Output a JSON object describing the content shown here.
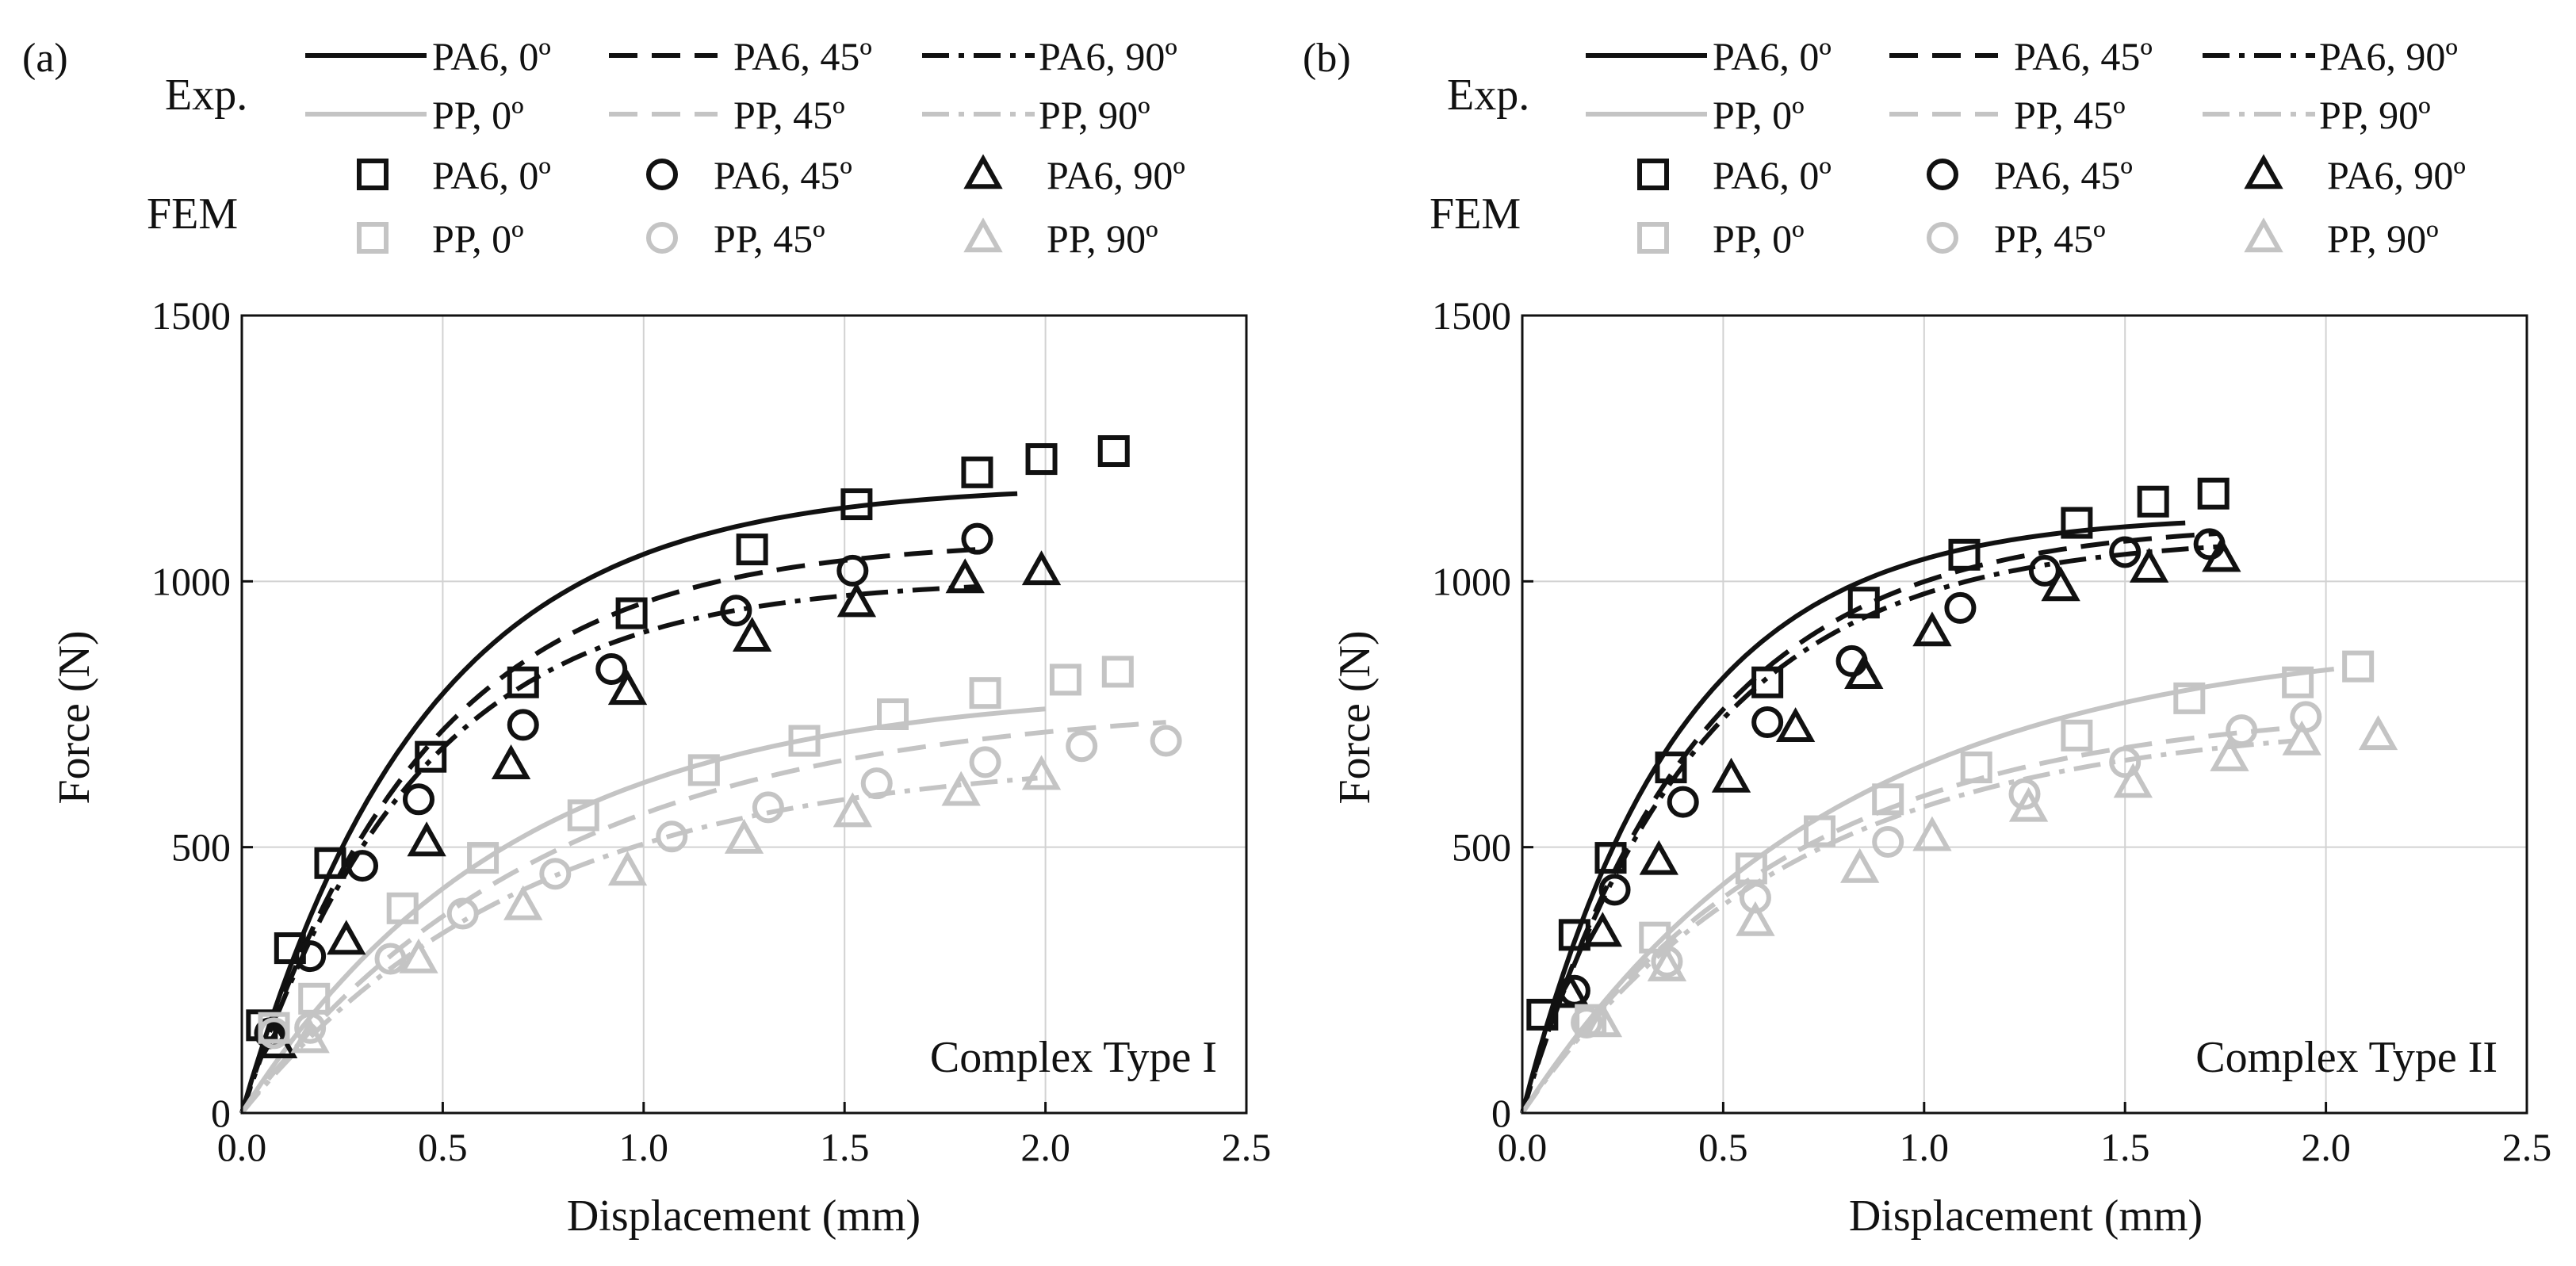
{
  "colors": {
    "pa6": "#111111",
    "pp": "#c4c4c4",
    "grid": "#d2d2d2",
    "axis": "#111111"
  },
  "legend": {
    "exp_label": "Exp.",
    "fem_label": "FEM",
    "items": [
      "PA6, 0º",
      "PA6, 45º",
      "PA6, 90º",
      "PP, 0º",
      "PP, 45º",
      "PP, 90º"
    ]
  },
  "chart_data": [
    {
      "type": "line",
      "panel_label": "(a)",
      "annotation": "Complex Type I",
      "xlabel": "Displacement (mm)",
      "ylabel": "Force (N)",
      "xlim": [
        0,
        2.5
      ],
      "ylim": [
        0,
        1500
      ],
      "xticks": [
        "0.0",
        "0.5",
        "1.0",
        "1.5",
        "2.0",
        "2.5"
      ],
      "yticks": [
        "0",
        "500",
        "1000",
        "1500"
      ],
      "grid": true,
      "exp_series": [
        {
          "name": "PA6, 0º",
          "material": "PA6",
          "style": "solid",
          "x_max": 1.93,
          "y_max": 1165,
          "k": 2.2
        },
        {
          "name": "PA6, 45º",
          "material": "PA6",
          "style": "dash",
          "x_max": 1.83,
          "y_max": 1060,
          "k": 2.2
        },
        {
          "name": "PA6, 90º",
          "material": "PA6",
          "style": "dashdot",
          "x_max": 1.83,
          "y_max": 990,
          "k": 2.3
        },
        {
          "name": "PP, 0º",
          "material": "PP",
          "style": "solid",
          "x_max": 2.0,
          "y_max": 760,
          "k": 1.5
        },
        {
          "name": "PP, 45º",
          "material": "PP",
          "style": "dash",
          "x_max": 2.3,
          "y_max": 735,
          "k": 1.3
        },
        {
          "name": "PP, 90º",
          "material": "PP",
          "style": "dashdot",
          "x_max": 1.98,
          "y_max": 630,
          "k": 1.4
        }
      ],
      "fem_series": [
        {
          "name": "PA6, 0º",
          "material": "PA6",
          "marker": "square",
          "x": [
            0.05,
            0.12,
            0.22,
            0.47,
            0.7,
            0.97,
            1.27,
            1.53,
            1.83,
            1.99,
            2.17
          ],
          "y": [
            165,
            310,
            470,
            670,
            810,
            940,
            1060,
            1145,
            1205,
            1230,
            1245
          ]
        },
        {
          "name": "PA6, 45º",
          "material": "PA6",
          "marker": "circle",
          "x": [
            0.07,
            0.17,
            0.3,
            0.44,
            0.7,
            0.92,
            1.23,
            1.52,
            1.83
          ],
          "y": [
            150,
            295,
            465,
            590,
            730,
            835,
            945,
            1020,
            1080
          ]
        },
        {
          "name": "PA6, 90º",
          "material": "PA6",
          "marker": "triangle",
          "x": [
            0.09,
            0.26,
            0.46,
            0.67,
            0.96,
            1.27,
            1.53,
            1.8,
            1.99
          ],
          "y": [
            130,
            325,
            510,
            655,
            795,
            895,
            960,
            1005,
            1020
          ]
        },
        {
          "name": "PP, 0º",
          "material": "PP",
          "marker": "square",
          "x": [
            0.08,
            0.18,
            0.4,
            0.6,
            0.85,
            1.15,
            1.4,
            1.62,
            1.85,
            2.05,
            2.18
          ],
          "y": [
            160,
            215,
            385,
            480,
            560,
            645,
            700,
            750,
            790,
            815,
            830
          ]
        },
        {
          "name": "PP, 45º",
          "material": "PP",
          "marker": "circle",
          "x": [
            0.08,
            0.17,
            0.37,
            0.55,
            0.78,
            1.07,
            1.31,
            1.58,
            1.85,
            2.09,
            2.3
          ],
          "y": [
            150,
            160,
            290,
            375,
            450,
            520,
            575,
            620,
            660,
            690,
            700
          ]
        },
        {
          "name": "PP, 90º",
          "material": "PP",
          "marker": "triangle",
          "x": [
            0.17,
            0.44,
            0.7,
            0.96,
            1.25,
            1.52,
            1.79,
            1.99
          ],
          "y": [
            140,
            290,
            390,
            455,
            515,
            565,
            605,
            635
          ]
        }
      ]
    },
    {
      "type": "line",
      "panel_label": "(b)",
      "annotation": "Complex Type II",
      "xlabel": "Displacement (mm)",
      "ylabel": "Force (N)",
      "xlim": [
        0,
        2.5
      ],
      "ylim": [
        0,
        1500
      ],
      "xticks": [
        "0.0",
        "0.5",
        "1.0",
        "1.5",
        "2.0",
        "2.5"
      ],
      "yticks": [
        "0",
        "500",
        "1000",
        "1500"
      ],
      "grid": true,
      "exp_series": [
        {
          "name": "PA6, 0º",
          "material": "PA6",
          "style": "solid",
          "x_max": 1.65,
          "y_max": 1110,
          "k": 2.6
        },
        {
          "name": "PA6, 45º",
          "material": "PA6",
          "style": "dash",
          "x_max": 1.73,
          "y_max": 1090,
          "k": 2.3
        },
        {
          "name": "PA6, 90º",
          "material": "PA6",
          "style": "dashdot",
          "x_max": 1.73,
          "y_max": 1065,
          "k": 2.3
        },
        {
          "name": "PP, 0º",
          "material": "PP",
          "style": "solid",
          "x_max": 2.02,
          "y_max": 835,
          "k": 1.3
        },
        {
          "name": "PP, 45º",
          "material": "PP",
          "style": "dash",
          "x_max": 1.92,
          "y_max": 725,
          "k": 1.5
        },
        {
          "name": "PP, 90º",
          "material": "PP",
          "style": "dashdot",
          "x_max": 1.92,
          "y_max": 700,
          "k": 1.5
        }
      ],
      "fem_series": [
        {
          "name": "PA6, 0º",
          "material": "PA6",
          "marker": "square",
          "x": [
            0.05,
            0.13,
            0.22,
            0.37,
            0.61,
            0.85,
            1.1,
            1.38,
            1.57,
            1.72
          ],
          "y": [
            185,
            335,
            480,
            650,
            810,
            960,
            1050,
            1110,
            1150,
            1165
          ]
        },
        {
          "name": "PA6, 45º",
          "material": "PA6",
          "marker": "circle",
          "x": [
            0.13,
            0.23,
            0.4,
            0.61,
            0.82,
            1.09,
            1.3,
            1.5,
            1.71
          ],
          "y": [
            230,
            420,
            585,
            735,
            850,
            950,
            1020,
            1055,
            1070
          ]
        },
        {
          "name": "PA6, 90º",
          "material": "PA6",
          "marker": "triangle",
          "x": [
            0.12,
            0.2,
            0.34,
            0.52,
            0.68,
            0.85,
            1.02,
            1.34,
            1.56,
            1.74
          ],
          "y": [
            225,
            340,
            475,
            630,
            725,
            825,
            905,
            990,
            1025,
            1045
          ]
        },
        {
          "name": "PP, 0º",
          "material": "PP",
          "marker": "square",
          "x": [
            0.17,
            0.33,
            0.57,
            0.74,
            0.91,
            1.13,
            1.38,
            1.66,
            1.93,
            2.08
          ],
          "y": [
            175,
            330,
            460,
            530,
            590,
            650,
            710,
            780,
            810,
            840
          ]
        },
        {
          "name": "PP, 45º",
          "material": "PP",
          "marker": "circle",
          "x": [
            0.16,
            0.36,
            0.58,
            0.91,
            1.25,
            1.5,
            1.79,
            1.95
          ],
          "y": [
            170,
            285,
            405,
            510,
            600,
            660,
            720,
            745
          ]
        },
        {
          "name": "PP, 90º",
          "material": "PP",
          "marker": "triangle",
          "x": [
            0.2,
            0.36,
            0.58,
            0.84,
            1.02,
            1.26,
            1.52,
            1.76,
            1.94,
            2.13
          ],
          "y": [
            170,
            275,
            360,
            460,
            520,
            575,
            620,
            670,
            700,
            710
          ]
        }
      ]
    }
  ]
}
